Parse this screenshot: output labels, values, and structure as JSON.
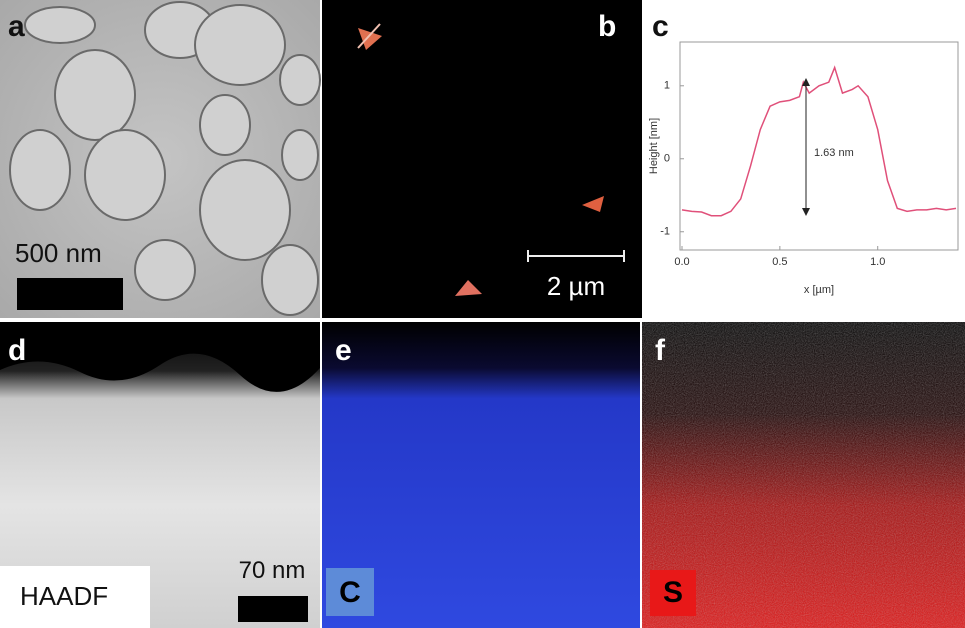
{
  "panels": {
    "a": "a",
    "b": "b",
    "c": "c",
    "d": "d",
    "e": "e",
    "f": "f",
    "scale_a": "500 nm",
    "scale_b": "2 µm",
    "scale_d": "70 nm",
    "label_d": "HAADF",
    "label_e": "C",
    "label_f": "S"
  },
  "chart_data": {
    "type": "line",
    "x_label": "x [µm]",
    "y_label": "Height [nm]",
    "annotation": "1.63 nm",
    "x": [
      0.0,
      0.05,
      0.1,
      0.15,
      0.2,
      0.25,
      0.3,
      0.35,
      0.4,
      0.45,
      0.5,
      0.55,
      0.6,
      0.62,
      0.65,
      0.7,
      0.75,
      0.78,
      0.82,
      0.87,
      0.9,
      0.95,
      1.0,
      1.05,
      1.1,
      1.15,
      1.2,
      1.25,
      1.3,
      1.35,
      1.4
    ],
    "series": [
      {
        "color": "#e0507a",
        "values": [
          -0.7,
          -0.72,
          -0.73,
          -0.78,
          -0.78,
          -0.72,
          -0.55,
          -0.1,
          0.4,
          0.72,
          0.78,
          0.8,
          0.85,
          1.05,
          0.9,
          1.0,
          1.05,
          1.25,
          0.9,
          0.95,
          1.0,
          0.85,
          0.4,
          -0.3,
          -0.68,
          -0.72,
          -0.7,
          -0.7,
          -0.68,
          -0.7,
          -0.68
        ]
      }
    ],
    "xlim": [
      0,
      1.4
    ],
    "ylim": [
      -1.25,
      1.6
    ],
    "xticks": [
      {
        "value": 0,
        "label": "0.0"
      },
      {
        "value": 0.5,
        "label": "0.5"
      },
      {
        "value": 1,
        "label": "1.0"
      }
    ],
    "yticks": [
      -1,
      0,
      1
    ]
  }
}
